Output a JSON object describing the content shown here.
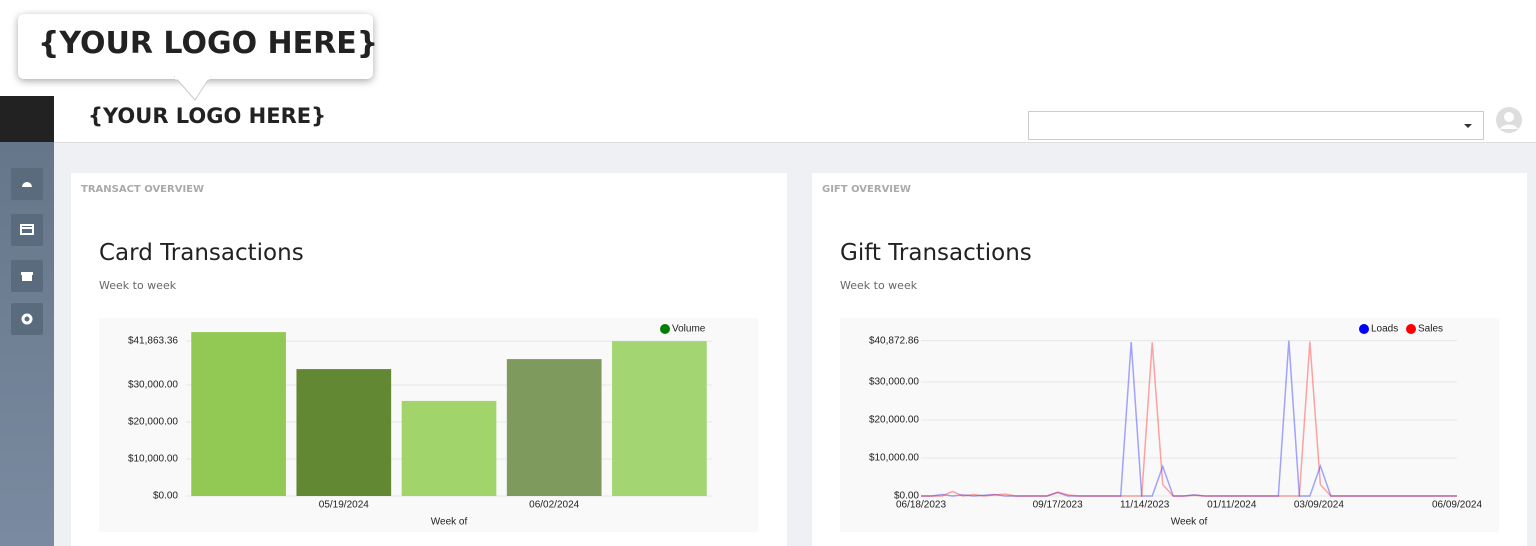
{
  "header": {
    "logo_callout": "{YOUR LOGO HERE}",
    "logo": "{YOUR LOGO HERE}"
  },
  "panels": [
    {
      "label": "TRANSACT OVERVIEW",
      "title": "Card Transactions",
      "subtitle": "Week to week",
      "chart": {
        "type": "bar",
        "xlabel": "Week of",
        "categories": [
          null,
          "05/19/2024",
          null,
          "06/02/2024",
          null
        ],
        "series": [
          {
            "name": "Volume",
            "color": "#008000",
            "values": [
              44300,
              34300,
              25700,
              37000,
              41863.36
            ],
            "bar_colors": [
              "#92c954",
              "#628834",
              "#a2d46c",
              "#7e9a5c",
              "#a3d672"
            ]
          }
        ],
        "ylim": [
          0,
          45000
        ],
        "yticks": [
          {
            "value": 0,
            "label": "$0.00"
          },
          {
            "value": 10000,
            "label": "$10,000.00"
          },
          {
            "value": 20000,
            "label": "$20,000.00"
          },
          {
            "value": 30000,
            "label": "$30,000.00"
          },
          {
            "value": 41863.36,
            "label": "$41,863.36"
          }
        ],
        "grid": true
      }
    },
    {
      "label": "GIFT OVERVIEW",
      "title": "Gift Transactions",
      "subtitle": "Week to week",
      "chart": {
        "type": "line",
        "xlabel": "Week of",
        "x": [
          "06/18/2023",
          "06/25/2023",
          "07/02/2023",
          "07/09/2023",
          "07/16/2023",
          "07/23/2023",
          "07/30/2023",
          "08/06/2023",
          "08/13/2023",
          "08/20/2023",
          "08/27/2023",
          "09/03/2023",
          "09/10/2023",
          "09/17/2023",
          "09/24/2023",
          "10/01/2023",
          "10/08/2023",
          "10/15/2023",
          "10/22/2023",
          "10/29/2023",
          "11/05/2023",
          "11/12/2023",
          "11/19/2023",
          "11/26/2023",
          "12/03/2023",
          "12/10/2023",
          "12/17/2023",
          "12/24/2023",
          "12/31/2023",
          "01/07/2024",
          "01/14/2024",
          "01/21/2024",
          "01/28/2024",
          "02/04/2024",
          "02/11/2024",
          "02/18/2024",
          "02/25/2024",
          "03/03/2024",
          "03/10/2024",
          "03/17/2024",
          "03/24/2024",
          "03/31/2024",
          "04/07/2024",
          "04/14/2024",
          "04/21/2024",
          "04/28/2024",
          "05/05/2024",
          "05/12/2024",
          "05/19/2024",
          "05/26/2024",
          "06/02/2024",
          "06/09/2024"
        ],
        "xticks": [
          "06/18/2023",
          "09/17/2023",
          "11/14/2023",
          "01/11/2024",
          "03/09/2024",
          "06/09/2024"
        ],
        "series": [
          {
            "name": "Loads",
            "color": "#0000ff",
            "values": [
              0,
              0,
              400,
              0,
              300,
              0,
              200,
              400,
              0,
              0,
              0,
              0,
              0,
              900,
              0,
              0,
              0,
              0,
              0,
              0,
              40500,
              0,
              0,
              7800,
              0,
              0,
              300,
              0,
              0,
              0,
              0,
              0,
              0,
              0,
              0,
              40872.86,
              0,
              0,
              7900,
              0,
              0,
              0,
              0,
              0,
              0,
              0,
              0,
              0,
              0,
              0,
              0,
              0
            ]
          },
          {
            "name": "Sales",
            "color": "#ff0000",
            "values": [
              0,
              0,
              0,
              1200,
              0,
              400,
              0,
              300,
              500,
              0,
              0,
              0,
              0,
              1000,
              300,
              0,
              0,
              0,
              0,
              0,
              0,
              0,
              40400,
              3000,
              0,
              0,
              200,
              0,
              0,
              0,
              0,
              0,
              0,
              0,
              0,
              0,
              0,
              40600,
              3000,
              0,
              0,
              0,
              0,
              0,
              0,
              0,
              0,
              0,
              0,
              0,
              0,
              0
            ]
          }
        ],
        "ylim": [
          0,
          45000
        ],
        "yticks": [
          {
            "value": 0,
            "label": "$0.00"
          },
          {
            "value": 10000,
            "label": "$10,000.00"
          },
          {
            "value": 20000,
            "label": "$20,000.00"
          },
          {
            "value": 30000,
            "label": "$30,000.00"
          },
          {
            "value": 40872.86,
            "label": "$40,872.86"
          }
        ],
        "grid": true
      }
    }
  ]
}
